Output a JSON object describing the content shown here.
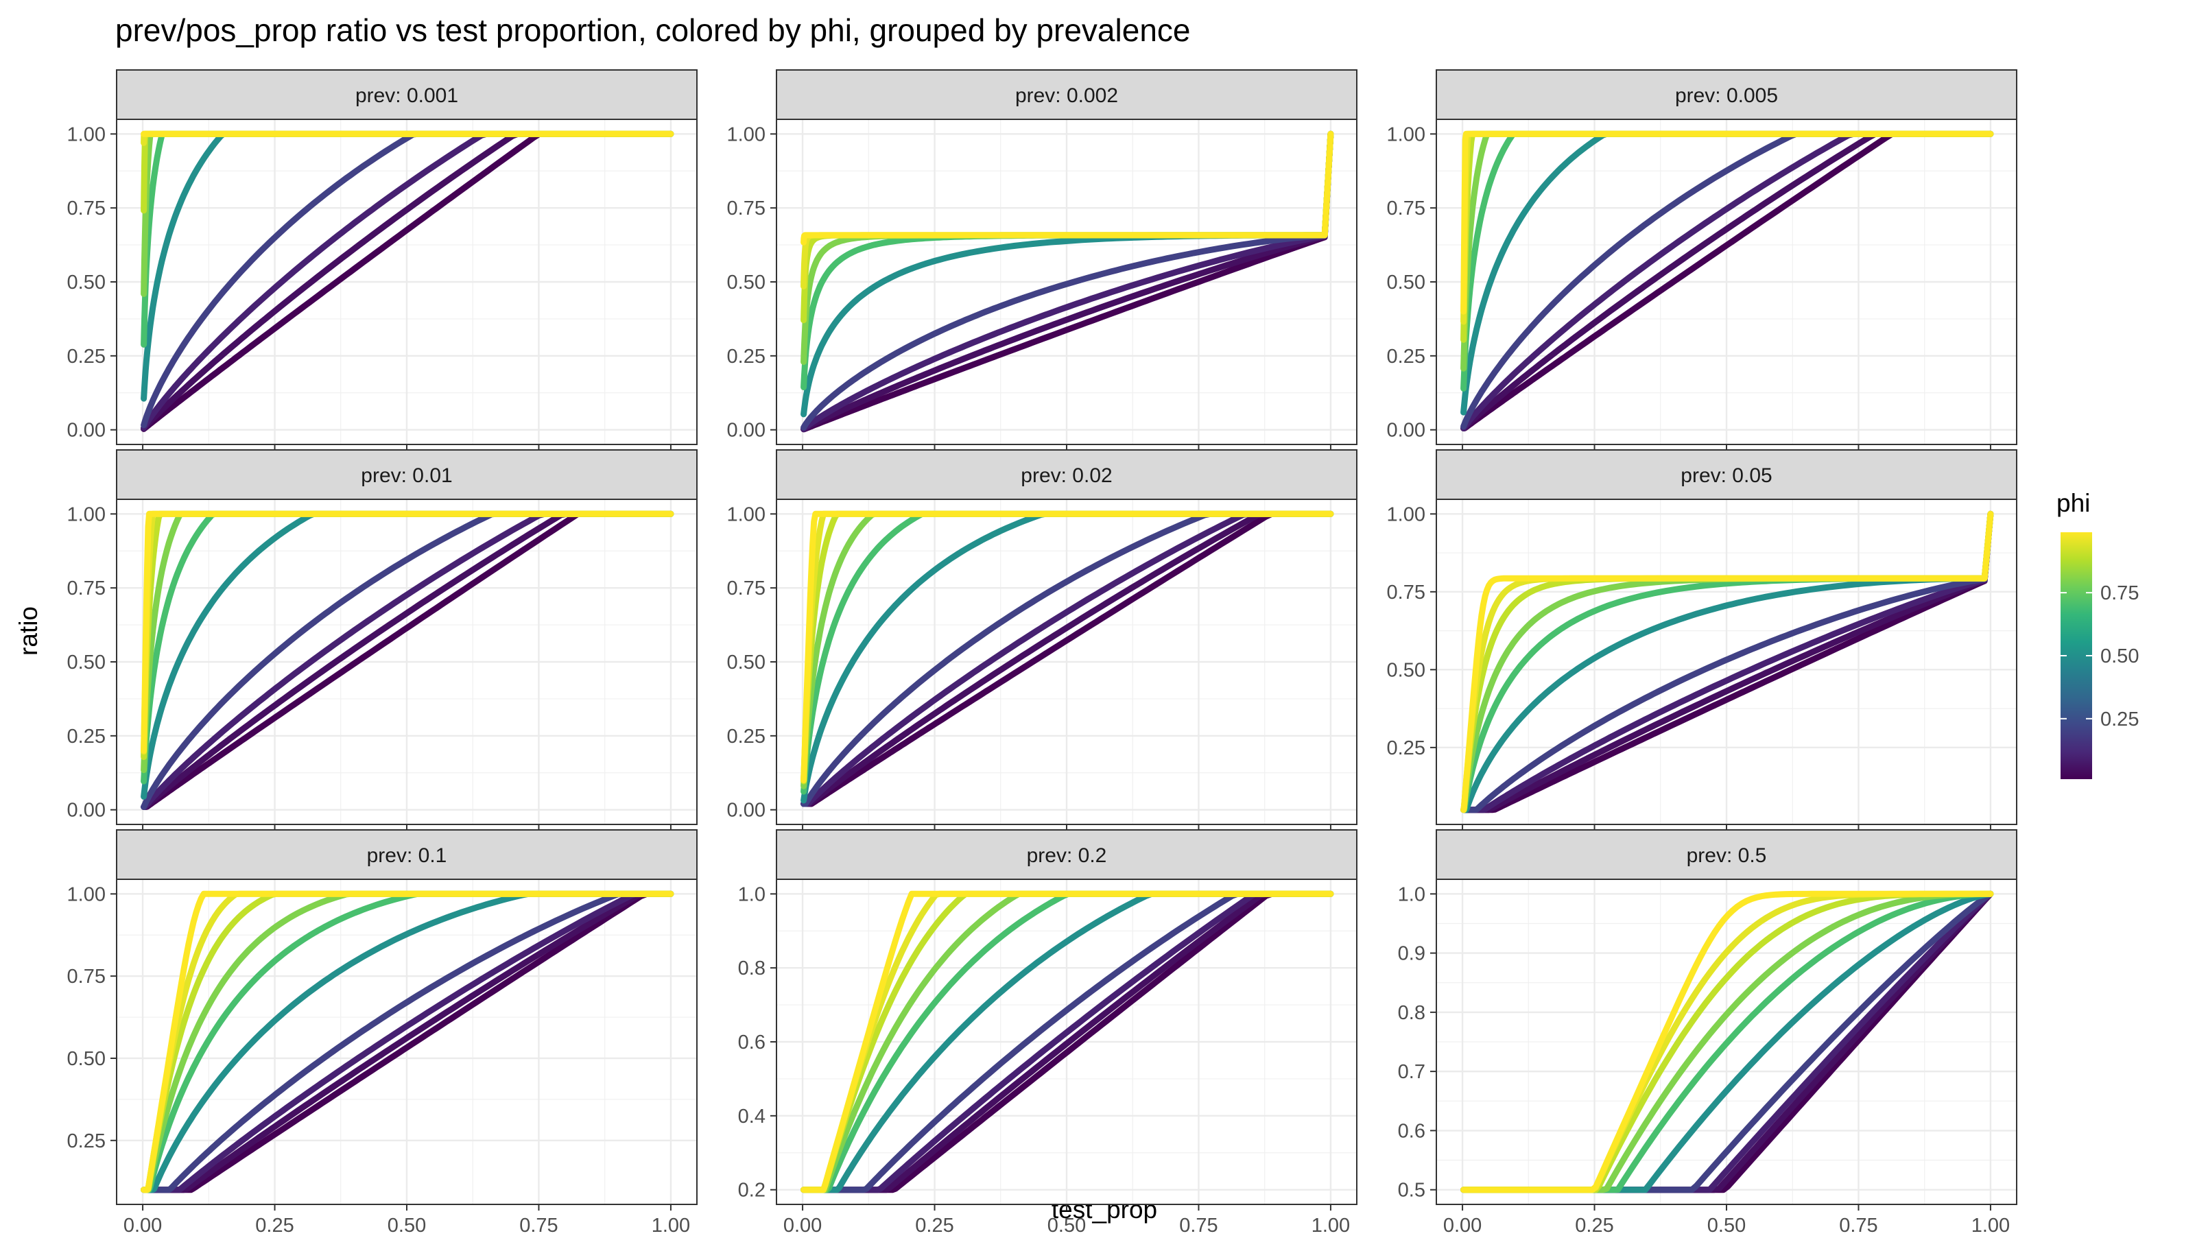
{
  "chart_data": {
    "type": "line",
    "title": "prev/pos_prop ratio vs test proportion, colored by phi, grouped by prevalence",
    "xlabel": "test_prop",
    "ylabel": "ratio",
    "grid": true,
    "legend": {
      "title": "phi",
      "position": "right",
      "ticks": [
        "0.25",
        "0.50",
        "0.75"
      ],
      "tick_values": [
        0.25,
        0.5,
        0.75
      ],
      "range": [
        0.01,
        0.99
      ]
    },
    "colors": {
      "viridis": [
        "#440154",
        "#482878",
        "#3e4989",
        "#31688e",
        "#26828e",
        "#1f9e89",
        "#35b779",
        "#6ece58",
        "#b5de2b",
        "#fde725"
      ]
    },
    "phi_values": [
      0.01,
      0.05,
      0.1,
      0.2,
      0.5,
      0.7,
      0.8,
      0.9,
      0.95,
      0.99
    ],
    "xlim": [
      0,
      1
    ],
    "x_ticks": [
      "0.00",
      "0.25",
      "0.50",
      "0.75",
      "1.00"
    ],
    "facets": [
      {
        "label": "prev: 0.001",
        "prev": 0.001,
        "ylim": [
          0,
          1
        ],
        "y_ticks": [
          "0.00",
          "0.25",
          "0.50",
          "0.75",
          "1.00"
        ]
      },
      {
        "label": "prev: 0.002",
        "prev": 0.002,
        "ylim": [
          0,
          1
        ],
        "y_ticks": [
          "0.00",
          "0.25",
          "0.50",
          "0.75",
          "1.00"
        ]
      },
      {
        "label": "prev: 0.005",
        "prev": 0.005,
        "ylim": [
          0,
          1
        ],
        "y_ticks": [
          "0.00",
          "0.25",
          "0.50",
          "0.75",
          "1.00"
        ]
      },
      {
        "label": "prev: 0.01",
        "prev": 0.01,
        "ylim": [
          0,
          1
        ],
        "y_ticks": [
          "0.00",
          "0.25",
          "0.50",
          "0.75",
          "1.00"
        ]
      },
      {
        "label": "prev: 0.02",
        "prev": 0.02,
        "ylim": [
          0,
          1
        ],
        "y_ticks": [
          "0.00",
          "0.25",
          "0.50",
          "0.75",
          "1.00"
        ]
      },
      {
        "label": "prev: 0.05",
        "prev": 0.05,
        "ylim": [
          0.05,
          1
        ],
        "y_ticks": [
          "0.25",
          "0.50",
          "0.75",
          "1.00"
        ]
      },
      {
        "label": "prev: 0.1",
        "prev": 0.1,
        "ylim": [
          0.1,
          1
        ],
        "y_ticks": [
          "0.25",
          "0.50",
          "0.75",
          "1.00"
        ]
      },
      {
        "label": "prev: 0.2",
        "prev": 0.2,
        "ylim": [
          0.2,
          1
        ],
        "y_ticks": [
          "0.2",
          "0.4",
          "0.6",
          "0.8",
          "1.0"
        ]
      },
      {
        "label": "prev: 0.5",
        "prev": 0.5,
        "ylim": [
          0.5,
          1
        ],
        "y_ticks": [
          "0.5",
          "0.6",
          "0.7",
          "0.8",
          "0.9",
          "1.0"
        ]
      }
    ]
  }
}
